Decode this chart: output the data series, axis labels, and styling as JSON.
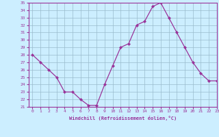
{
  "x": [
    0,
    1,
    2,
    3,
    4,
    5,
    6,
    7,
    8,
    9,
    10,
    11,
    12,
    13,
    14,
    15,
    16,
    17,
    18,
    19,
    20,
    21,
    22,
    23
  ],
  "y": [
    28,
    27,
    26,
    25,
    23,
    23,
    22,
    21.2,
    21.2,
    24,
    26.5,
    29,
    29.5,
    32,
    32.5,
    34.5,
    35,
    33,
    31,
    29,
    27,
    25.5,
    24.5,
    24.5
  ],
  "line_color": "#993399",
  "marker_color": "#993399",
  "bg_color": "#cceeff",
  "grid_color": "#99bbcc",
  "xlabel": "Windchill (Refroidissement éolien,°C)",
  "xlabel_color": "#993399",
  "tick_color": "#993399",
  "spine_color": "#993399",
  "ylim": [
    21,
    35
  ],
  "xlim": [
    -0.5,
    23
  ],
  "yticks": [
    21,
    22,
    23,
    24,
    25,
    26,
    27,
    28,
    29,
    30,
    31,
    32,
    33,
    34,
    35
  ],
  "xticks": [
    0,
    1,
    2,
    3,
    4,
    5,
    6,
    7,
    8,
    9,
    10,
    11,
    12,
    13,
    14,
    15,
    16,
    17,
    18,
    19,
    20,
    21,
    22,
    23
  ]
}
